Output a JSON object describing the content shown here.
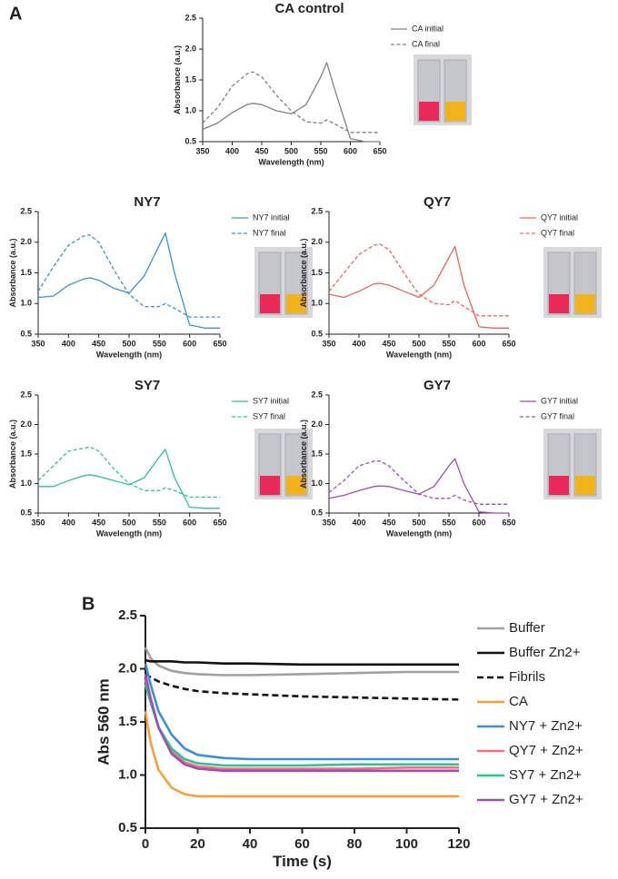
{
  "chart_data": [
    {
      "type": "line",
      "panel": "A",
      "title": "CA control",
      "x_label": "Wavelength (nm)",
      "y_label": "Absorbance (a.u.)",
      "x": [
        350,
        375,
        400,
        425,
        435,
        450,
        475,
        500,
        525,
        550,
        560,
        575,
        600,
        625,
        650
      ],
      "xlim": [
        350,
        650
      ],
      "xticks": [
        350,
        400,
        450,
        500,
        550,
        600,
        650
      ],
      "ylim": [
        0.5,
        2.5
      ],
      "yticks": [
        0.5,
        {
          "value": 1,
          "label": "1.0"
        },
        1.5,
        {
          "value": 2,
          "label": "2.0"
        },
        2.5
      ],
      "legend": "right",
      "series": [
        {
          "name": "CA initial",
          "color": "#808080",
          "dash": false,
          "values": [
            0.7,
            0.8,
            0.97,
            1.1,
            1.12,
            1.1,
            1.0,
            0.95,
            1.1,
            1.55,
            1.78,
            1.3,
            0.55,
            0.5,
            0.5
          ]
        },
        {
          "name": "CA final",
          "color": "#808080",
          "dash": true,
          "values": [
            0.8,
            1.05,
            1.4,
            1.6,
            1.63,
            1.55,
            1.25,
            1.0,
            0.82,
            0.8,
            0.85,
            0.78,
            0.65,
            0.65,
            0.65
          ]
        }
      ]
    },
    {
      "type": "line",
      "title": "NY7",
      "x_label": "Wavelength (nm)",
      "y_label": "Absorbance (a.u.)",
      "x": [
        350,
        375,
        400,
        425,
        435,
        450,
        475,
        500,
        525,
        550,
        560,
        575,
        600,
        625,
        650
      ],
      "xlim": [
        350,
        650
      ],
      "xticks": [
        350,
        400,
        450,
        500,
        550,
        600,
        650
      ],
      "ylim": [
        0.5,
        2.5
      ],
      "yticks": [
        0.5,
        {
          "value": 1,
          "label": "1.0"
        },
        1.5,
        {
          "value": 2,
          "label": "2.0"
        },
        2.5
      ],
      "legend": "right",
      "series": [
        {
          "name": "NY7 initial",
          "color": "#3a8fd6",
          "dash": false,
          "values": [
            1.1,
            1.12,
            1.3,
            1.4,
            1.42,
            1.38,
            1.25,
            1.17,
            1.45,
            1.95,
            2.15,
            1.5,
            0.65,
            0.6,
            0.6
          ]
        },
        {
          "name": "NY7 final",
          "color": "#3a8fd6",
          "dash": true,
          "values": [
            1.2,
            1.6,
            1.95,
            2.1,
            2.12,
            2.0,
            1.55,
            1.15,
            0.95,
            0.95,
            1.0,
            0.92,
            0.78,
            0.78,
            0.78
          ]
        }
      ]
    },
    {
      "type": "line",
      "title": "QY7",
      "x_label": "Wavelength (nm)",
      "y_label": "Absorbance (a.u.)",
      "x": [
        350,
        375,
        400,
        425,
        435,
        450,
        475,
        500,
        525,
        550,
        560,
        575,
        600,
        625,
        650
      ],
      "xlim": [
        350,
        650
      ],
      "xticks": [
        350,
        400,
        450,
        500,
        550,
        600,
        650
      ],
      "ylim": [
        0.5,
        2.5
      ],
      "yticks": [
        0.5,
        {
          "value": 1,
          "label": "1.0"
        },
        1.5,
        {
          "value": 2,
          "label": "2.0"
        },
        2.5
      ],
      "legend": "right",
      "series": [
        {
          "name": "QY7 initial",
          "color": "#f0605a",
          "dash": false,
          "values": [
            1.15,
            1.1,
            1.2,
            1.32,
            1.33,
            1.3,
            1.2,
            1.1,
            1.3,
            1.75,
            1.93,
            1.3,
            0.62,
            0.6,
            0.6
          ]
        },
        {
          "name": "QY7 final",
          "color": "#f0605a",
          "dash": true,
          "values": [
            1.2,
            1.5,
            1.8,
            1.95,
            1.97,
            1.88,
            1.5,
            1.15,
            1.0,
            0.98,
            1.05,
            0.95,
            0.8,
            0.8,
            0.8
          ]
        }
      ]
    },
    {
      "type": "line",
      "title": "SY7",
      "x_label": "Wavelength (nm)",
      "y_label": "Absorbance (a.u.)",
      "x": [
        350,
        375,
        400,
        425,
        435,
        450,
        475,
        500,
        525,
        550,
        560,
        575,
        600,
        625,
        650
      ],
      "xlim": [
        350,
        650
      ],
      "xticks": [
        350,
        400,
        450,
        500,
        550,
        600,
        650
      ],
      "ylim": [
        0.5,
        2.5
      ],
      "yticks": [
        0.5,
        {
          "value": 1,
          "label": "1.0"
        },
        1.5,
        {
          "value": 2,
          "label": "2.0"
        },
        2.5
      ],
      "legend": "right",
      "series": [
        {
          "name": "SY7 initial",
          "color": "#2cc48e",
          "dash": false,
          "values": [
            0.95,
            0.95,
            1.05,
            1.13,
            1.15,
            1.12,
            1.05,
            0.98,
            1.1,
            1.45,
            1.58,
            1.1,
            0.6,
            0.58,
            0.58
          ]
        },
        {
          "name": "SY7 final",
          "color": "#2cc48e",
          "dash": true,
          "values": [
            1.05,
            1.3,
            1.55,
            1.6,
            1.62,
            1.55,
            1.25,
            1.0,
            0.88,
            0.88,
            0.93,
            0.88,
            0.77,
            0.77,
            0.77
          ]
        }
      ]
    },
    {
      "type": "line",
      "title": "GY7",
      "x_label": "Wavelength (nm)",
      "y_label": "Absorbance (a.u.)",
      "x": [
        350,
        375,
        400,
        425,
        435,
        450,
        475,
        500,
        525,
        550,
        560,
        575,
        600,
        625,
        650
      ],
      "xlim": [
        350,
        650
      ],
      "xticks": [
        350,
        400,
        450,
        500,
        550,
        600,
        650
      ],
      "ylim": [
        0.5,
        2.5
      ],
      "yticks": [
        0.5,
        {
          "value": 1,
          "label": "1.0"
        },
        1.5,
        {
          "value": 2,
          "label": "2.0"
        },
        2.5
      ],
      "legend": "right",
      "series": [
        {
          "name": "GY7 initial",
          "color": "#a04cb4",
          "dash": false,
          "values": [
            0.75,
            0.8,
            0.88,
            0.95,
            0.96,
            0.95,
            0.88,
            0.82,
            0.95,
            1.3,
            1.42,
            1.0,
            0.52,
            0.5,
            0.5
          ]
        },
        {
          "name": "GY7 final",
          "color": "#a04cb4",
          "dash": true,
          "values": [
            0.85,
            1.05,
            1.3,
            1.38,
            1.38,
            1.3,
            1.05,
            0.82,
            0.75,
            0.75,
            0.8,
            0.72,
            0.65,
            0.65,
            0.65
          ]
        }
      ]
    },
    {
      "type": "line",
      "panel": "B",
      "x_label": "Time (s)",
      "y_label": "Abs 560 nm",
      "x": [
        0,
        2,
        5,
        10,
        15,
        20,
        30,
        40,
        60,
        80,
        100,
        120
      ],
      "xlim": [
        0,
        120
      ],
      "xticks": [
        0,
        20,
        40,
        60,
        80,
        100,
        120
      ],
      "ylim": [
        0.5,
        2.5
      ],
      "yticks": [
        0.5,
        {
          "value": 1,
          "label": "1.0"
        },
        1.5,
        {
          "value": 2,
          "label": "2.0"
        },
        2.5
      ],
      "legend": "right",
      "series": [
        {
          "name": "Buffer",
          "color": "#a0a0a0",
          "dash": false,
          "values": [
            2.2,
            2.1,
            2.03,
            1.98,
            1.96,
            1.95,
            1.94,
            1.94,
            1.95,
            1.96,
            1.97,
            1.97
          ]
        },
        {
          "name": "Buffer Zn2+",
          "color": "#111111",
          "dash": false,
          "values": [
            2.08,
            2.07,
            2.07,
            2.07,
            2.06,
            2.06,
            2.05,
            2.05,
            2.04,
            2.04,
            2.04,
            2.04
          ]
        },
        {
          "name": "Fibrils",
          "color": "#111111",
          "dash": true,
          "values": [
            1.95,
            1.92,
            1.88,
            1.84,
            1.81,
            1.79,
            1.77,
            1.76,
            1.74,
            1.73,
            1.72,
            1.71
          ]
        },
        {
          "name": "CA",
          "color": "#f5a03a",
          "dash": false,
          "values": [
            1.6,
            1.3,
            1.05,
            0.88,
            0.82,
            0.8,
            0.8,
            0.8,
            0.8,
            0.8,
            0.8,
            0.8
          ]
        },
        {
          "name": "NY7 + Zn2+",
          "color": "#3a8fd6",
          "dash": false,
          "values": [
            2.05,
            1.85,
            1.6,
            1.38,
            1.25,
            1.19,
            1.16,
            1.15,
            1.15,
            1.15,
            1.15,
            1.15
          ]
        },
        {
          "name": "QY7 + Zn2+",
          "color": "#f07080",
          "dash": false,
          "values": [
            1.9,
            1.7,
            1.45,
            1.22,
            1.12,
            1.08,
            1.06,
            1.06,
            1.06,
            1.06,
            1.07,
            1.07
          ]
        },
        {
          "name": "SY7 + Zn2+",
          "color": "#2cc48e",
          "dash": false,
          "values": [
            1.85,
            1.68,
            1.45,
            1.25,
            1.15,
            1.11,
            1.09,
            1.09,
            1.09,
            1.1,
            1.1,
            1.1
          ]
        },
        {
          "name": "GY7 + Zn2+",
          "color": "#a04cb4",
          "dash": false,
          "values": [
            1.95,
            1.72,
            1.45,
            1.2,
            1.1,
            1.06,
            1.04,
            1.04,
            1.04,
            1.04,
            1.04,
            1.04
          ]
        }
      ]
    }
  ]
}
